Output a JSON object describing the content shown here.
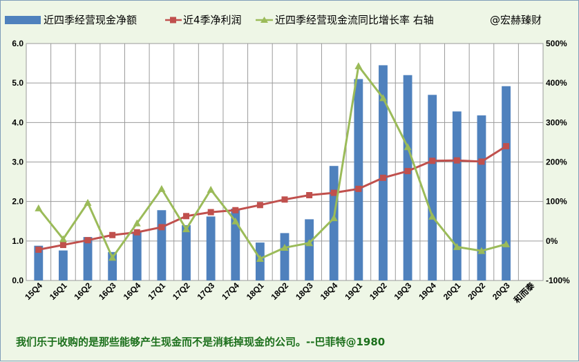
{
  "chart_data": {
    "type": "bar",
    "categories": [
      "15Q4",
      "16Q1",
      "16Q2",
      "16Q3",
      "16Q4",
      "17Q1",
      "17Q2",
      "17Q3",
      "17Q4",
      "18Q1",
      "18Q2",
      "18Q3",
      "18Q4",
      "19Q1",
      "19Q2",
      "19Q3",
      "19Q4",
      "20Q1",
      "20Q2",
      "20Q3",
      "和而泰"
    ],
    "series": [
      {
        "name": "近四季经营现金净额",
        "kind": "bar",
        "axis": "left",
        "color": "#4f81bd",
        "values": [
          0.88,
          0.76,
          1.1,
          0.72,
          1.22,
          1.78,
          1.4,
          1.62,
          1.82,
          0.96,
          1.2,
          1.55,
          2.9,
          5.1,
          5.45,
          5.2,
          4.7,
          4.28,
          4.18,
          4.92,
          null
        ]
      },
      {
        "name": "近4季净利润",
        "kind": "line",
        "axis": "left",
        "color": "#c0504d",
        "marker": "square",
        "values": [
          0.78,
          0.9,
          1.02,
          1.15,
          1.22,
          1.35,
          1.63,
          1.73,
          1.78,
          1.91,
          2.05,
          2.16,
          2.22,
          2.32,
          2.6,
          2.77,
          3.03,
          3.04,
          3.01,
          3.4,
          null
        ]
      },
      {
        "name": "近四季经营现金流同比增长率 右轴",
        "kind": "line",
        "axis": "right",
        "color": "#9bbb59",
        "marker": "triangle",
        "values": [
          83,
          5,
          97,
          -42,
          45,
          132,
          30,
          130,
          50,
          -45,
          -17,
          -5,
          58,
          443,
          362,
          238,
          62,
          -15,
          -25,
          -8,
          null
        ]
      }
    ],
    "y_left": {
      "min": 0,
      "max": 6,
      "step": 1,
      "format": "0.0"
    },
    "y_right": {
      "min": -100,
      "max": 500,
      "step": 100,
      "format": "%"
    },
    "grid": true,
    "legend_position": "top",
    "watermark": "@宏赫臻财",
    "footer": "我们乐于收购的是那些能够产生现金而不是消耗掉现金的公司。--巴菲特@1980"
  }
}
